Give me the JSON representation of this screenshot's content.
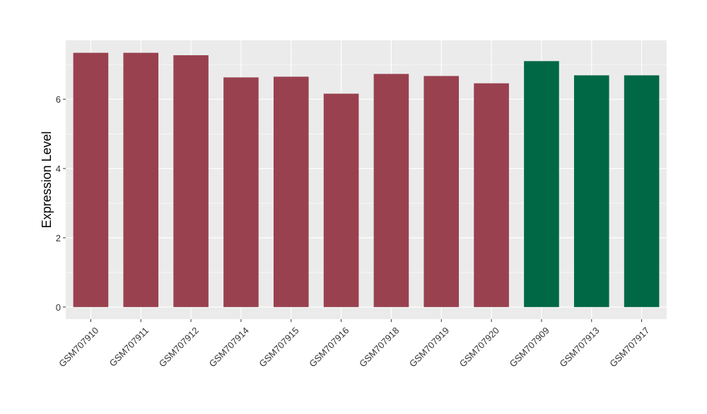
{
  "chart_data": {
    "type": "bar",
    "title": "",
    "xlabel": "",
    "ylabel": "Expression Level",
    "categories": [
      "GSM707910",
      "GSM707911",
      "GSM707912",
      "GSM707914",
      "GSM707915",
      "GSM707916",
      "GSM707918",
      "GSM707919",
      "GSM707920",
      "GSM707909",
      "GSM707913",
      "GSM707917"
    ],
    "values": [
      7.34,
      7.34,
      7.27,
      6.63,
      6.65,
      6.16,
      6.73,
      6.67,
      6.46,
      7.1,
      6.69,
      6.69
    ],
    "colors": [
      "#99414f",
      "#99414f",
      "#99414f",
      "#99414f",
      "#99414f",
      "#99414f",
      "#99414f",
      "#99414f",
      "#99414f",
      "#006845",
      "#006845",
      "#006845"
    ],
    "yticks": [
      0,
      2,
      4,
      6
    ],
    "ylim": [
      -0.35,
      7.7
    ],
    "grid": true,
    "legend": "none",
    "panel_color": "#ebebeb",
    "gridline_color": "#ffffff"
  }
}
